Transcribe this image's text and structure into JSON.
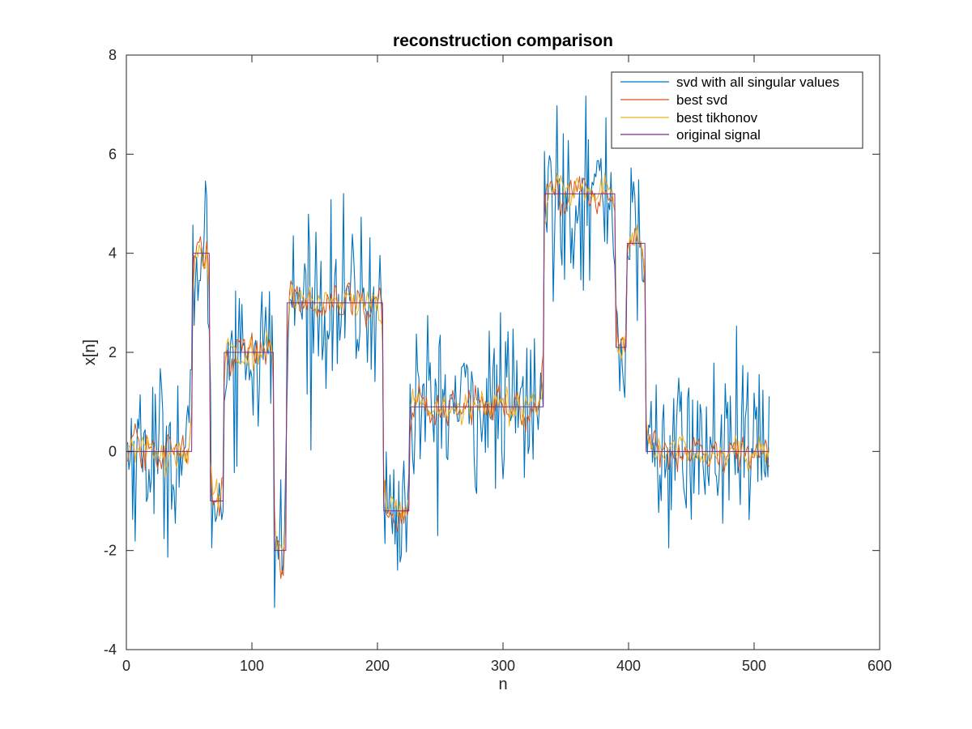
{
  "chart_data": {
    "type": "line",
    "title": "reconstruction comparison",
    "xlabel": "n",
    "ylabel": "x[n]",
    "xlim": [
      0,
      600
    ],
    "ylim": [
      -4,
      8
    ],
    "xticks": [
      0,
      100,
      200,
      300,
      400,
      500,
      600
    ],
    "yticks": [
      -4,
      -2,
      0,
      2,
      4,
      6,
      8
    ],
    "grid": false,
    "legend_position": "top-right",
    "n_samples": 512,
    "original_signal_segments": [
      {
        "from": 1,
        "to": 52,
        "value": 0
      },
      {
        "from": 53,
        "to": 66,
        "value": 4
      },
      {
        "from": 67,
        "to": 77,
        "value": -1
      },
      {
        "from": 78,
        "to": 117,
        "value": 2
      },
      {
        "from": 118,
        "to": 127,
        "value": -2
      },
      {
        "from": 128,
        "to": 204,
        "value": 3
      },
      {
        "from": 205,
        "to": 225,
        "value": -1.2
      },
      {
        "from": 226,
        "to": 332,
        "value": 0.9
      },
      {
        "from": 333,
        "to": 389,
        "value": 5.2
      },
      {
        "from": 390,
        "to": 398,
        "value": 2.1
      },
      {
        "from": 399,
        "to": 413,
        "value": 4.2
      },
      {
        "from": 414,
        "to": 512,
        "value": 0
      }
    ],
    "series": [
      {
        "name": "svd with all singular values",
        "color": "#0072bd",
        "noise_std": 0.85
      },
      {
        "name": "best svd",
        "color": "#d95319",
        "noise_std": 0.32
      },
      {
        "name": "best tikhonov",
        "color": "#edb120",
        "noise_std": 0.26
      },
      {
        "name": "original signal",
        "color": "#7e2f8e",
        "noise_std": 0
      }
    ]
  }
}
